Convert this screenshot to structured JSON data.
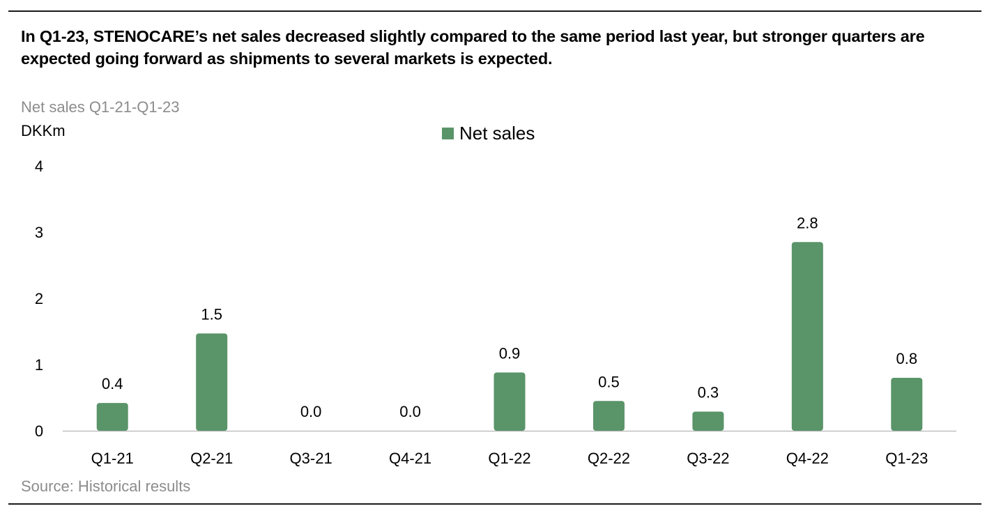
{
  "headline": "In Q1-23, STENOCARE’s net sales decreased slightly compared to the same period last year, but stronger quarters are expected going forward as shipments to several markets is expected.",
  "source": "Source: Historical results",
  "chart_data": {
    "type": "bar",
    "title": "Net sales Q1-21-Q1-23",
    "ylabel": "DKKm",
    "xlabel": "",
    "categories": [
      "Q1-21",
      "Q2-21",
      "Q3-21",
      "Q4-21",
      "Q1-22",
      "Q2-22",
      "Q3-22",
      "Q4-22",
      "Q1-23"
    ],
    "series": [
      {
        "name": "Net sales",
        "values": [
          0.4,
          1.5,
          0.0,
          0.0,
          0.9,
          0.5,
          0.3,
          2.8,
          0.8
        ],
        "labels": [
          "0.4",
          "1.5",
          "0.0",
          "0.0",
          "0.9",
          "0.5",
          "0.3",
          "2.8",
          "0.8"
        ]
      }
    ],
    "plotted_values": [
      0.42,
      1.47,
      0.0,
      0.0,
      0.88,
      0.45,
      0.29,
      2.85,
      0.8
    ],
    "ylim": [
      0,
      4
    ],
    "yticks": [
      "0",
      "1",
      "2",
      "3",
      "4"
    ],
    "grid": false,
    "legend": "top-center",
    "bar_color": "#5a9469"
  }
}
